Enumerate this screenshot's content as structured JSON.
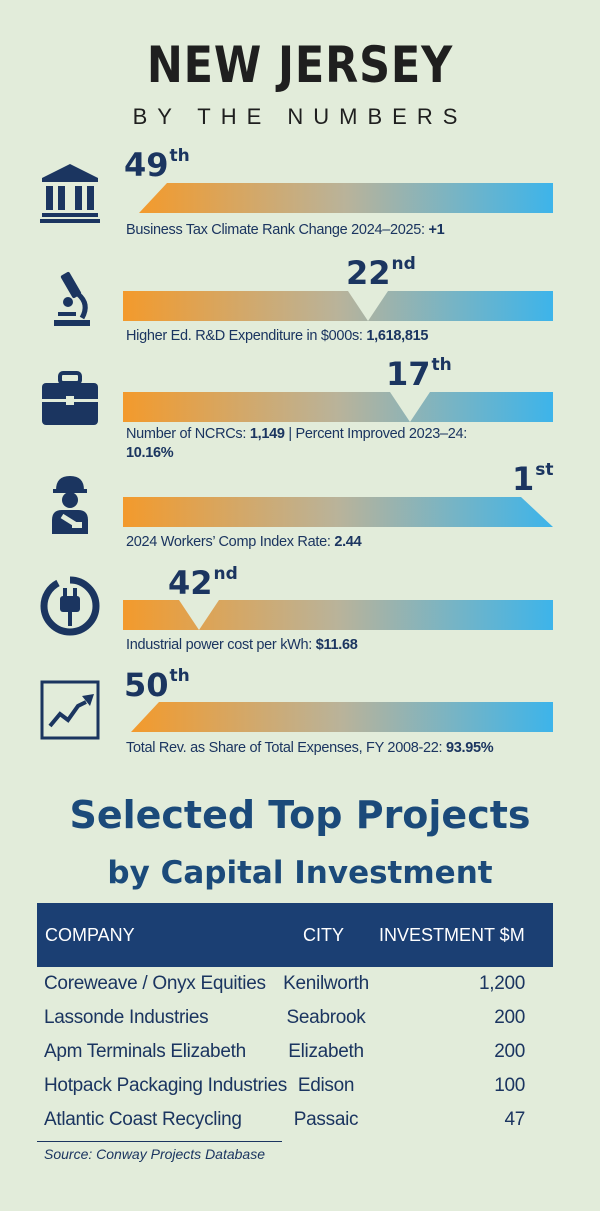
{
  "header": {
    "title": "NEW JERSEY",
    "subtitle": "BY THE NUMBERS"
  },
  "metrics": [
    {
      "icon": "bank-building-icon",
      "rank_number": "49",
      "rank_suffix": "th",
      "rank_value": 49,
      "caption_label": "Business Tax Climate Rank Change 2024–2025: ",
      "caption_value": "+1"
    },
    {
      "icon": "microscope-icon",
      "rank_number": "22",
      "rank_suffix": "nd",
      "rank_value": 22,
      "caption_label": "Higher Ed. R&D Expenditure in $000s: ",
      "caption_value": "1,618,815"
    },
    {
      "icon": "briefcase-icon",
      "rank_number": "17",
      "rank_suffix": "th",
      "rank_value": 17,
      "caption_label": "Number of NCRCs: ",
      "caption_value": "1,149",
      "caption_label_2": " | Percent Improved 2023–24: ",
      "caption_value_2": "10.16%"
    },
    {
      "icon": "injured-worker-icon",
      "rank_number": "1",
      "rank_suffix": "st",
      "rank_value": 1,
      "caption_label": "2024 Workers’ Comp Index Rate: ",
      "caption_value": "2.44"
    },
    {
      "icon": "power-plug-icon",
      "rank_number": "42",
      "rank_suffix": "nd",
      "rank_value": 42,
      "caption_label": "Industrial power cost per kWh: ",
      "caption_value": "$11.68"
    },
    {
      "icon": "trend-chart-icon",
      "rank_number": "50",
      "rank_suffix": "th",
      "rank_value": 50,
      "caption_label": "Total Rev. as Share of Total Expenses, FY 2008-22: ",
      "caption_value": "93.95%"
    }
  ],
  "projects": {
    "title": "Selected Top Projects",
    "subtitle": "by Capital Investment",
    "columns": [
      "COMPANY",
      "CITY",
      "INVESTMENT $M"
    ],
    "rows": [
      {
        "company": "Coreweave / Onyx Equities",
        "city": "Kenilworth",
        "investment": "1,200"
      },
      {
        "company": "Lassonde Industries",
        "city": "Seabrook",
        "investment": "200"
      },
      {
        "company": "Apm Terminals Elizabeth",
        "city": "Elizabeth",
        "investment": "200"
      },
      {
        "company": "Hotpack Packaging Industries",
        "city": "Edison",
        "investment": "100"
      },
      {
        "company": "Atlantic Coast Recycling",
        "city": "Passaic",
        "investment": "47"
      }
    ],
    "source": "Source: Conway Projects Database"
  },
  "colors": {
    "navy": "#1b3560",
    "orange": "#f39a2c",
    "blue": "#3db4ea",
    "background": "#e2ecda"
  }
}
